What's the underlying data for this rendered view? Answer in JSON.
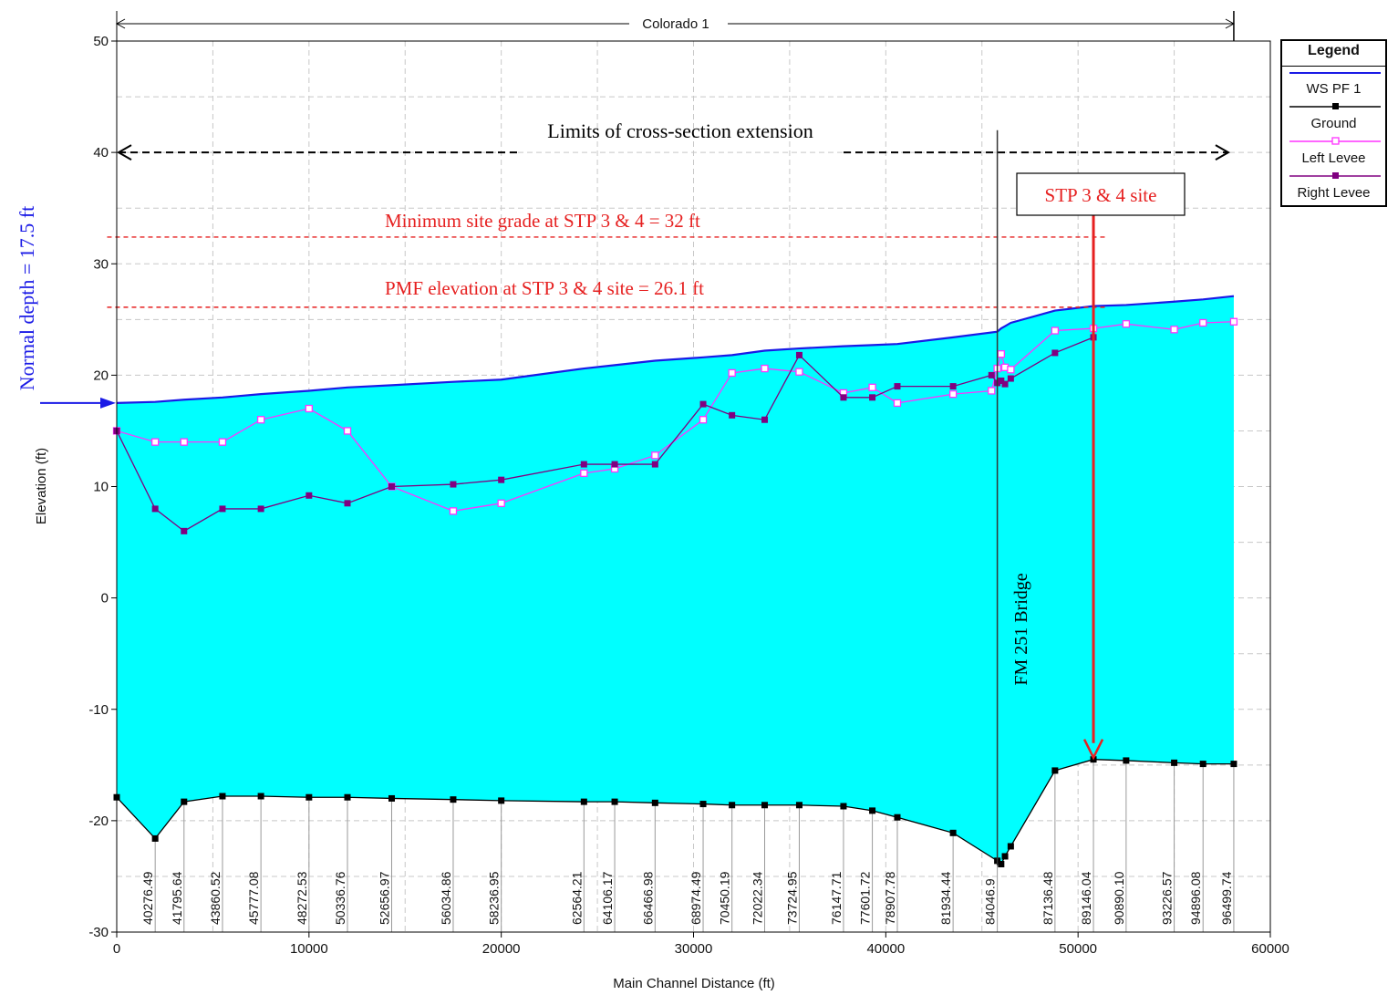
{
  "chart_data": {
    "type": "line",
    "title": "Colorado 1",
    "xlabel": "Main Channel Distance (ft)",
    "ylabel": "Elevation (ft)",
    "xlim": [
      0,
      60000
    ],
    "ylim": [
      -30,
      50
    ],
    "x_ticks": [
      0,
      10000,
      20000,
      30000,
      40000,
      50000,
      60000
    ],
    "y_ticks": [
      -30,
      -20,
      -10,
      0,
      10,
      20,
      30,
      40,
      50
    ],
    "grid": true,
    "legend_position": "right",
    "legend_title": "Legend",
    "series": [
      {
        "name": "WS  PF 1",
        "color": "#1a1ae6",
        "fill": "#00ffff",
        "x": [
          0,
          2000,
          3500,
          5500,
          7500,
          10000,
          12000,
          14300,
          17500,
          20000,
          24300,
          25900,
          28000,
          30500,
          32000,
          33700,
          35500,
          37800,
          39300,
          40600,
          43500,
          45800,
          46000,
          46200,
          46500,
          48800,
          50800,
          52500,
          55000,
          56500,
          58100
        ],
        "values": [
          17.5,
          17.6,
          17.8,
          18.0,
          18.3,
          18.6,
          18.9,
          19.1,
          19.4,
          19.6,
          20.6,
          20.9,
          21.3,
          21.6,
          21.8,
          22.2,
          22.4,
          22.6,
          22.7,
          22.8,
          23.4,
          23.9,
          24.2,
          24.4,
          24.7,
          25.8,
          26.2,
          26.3,
          26.6,
          26.8,
          27.1
        ]
      },
      {
        "name": "Ground",
        "color": "#000000",
        "x": [
          0,
          2000,
          3500,
          5500,
          7500,
          10000,
          12000,
          14300,
          17500,
          20000,
          24300,
          25900,
          28000,
          30500,
          32000,
          33700,
          35500,
          37800,
          39300,
          40600,
          43500,
          45800,
          46000,
          46200,
          46500,
          48800,
          50800,
          52500,
          55000,
          56500,
          58100
        ],
        "values": [
          -17.9,
          -21.6,
          -18.3,
          -17.8,
          -17.8,
          -17.9,
          -17.9,
          -18.0,
          -18.1,
          -18.2,
          -18.3,
          -18.3,
          -18.4,
          -18.5,
          -18.6,
          -18.6,
          -18.6,
          -18.7,
          -19.1,
          -19.7,
          -21.1,
          -23.6,
          -23.9,
          -23.2,
          -22.3,
          -15.5,
          -14.5,
          -14.6,
          -14.8,
          -14.9,
          -14.9
        ]
      },
      {
        "name": "Left Levee",
        "color": "#ff33ff",
        "x": [
          0,
          2000,
          3500,
          5500,
          7500,
          10000,
          12000,
          14300,
          17500,
          20000,
          24300,
          25900,
          28000,
          30500,
          32000,
          33700,
          35500,
          37800,
          39300,
          40600,
          43500,
          45500,
          45800,
          46000,
          46200,
          46500,
          48800,
          50800,
          52500,
          55000,
          56500,
          58100
        ],
        "values": [
          15.0,
          14.0,
          14.0,
          14.0,
          16.0,
          17.0,
          15.0,
          10.0,
          7.8,
          8.5,
          11.2,
          11.6,
          12.8,
          16.0,
          20.2,
          20.6,
          20.3,
          18.4,
          18.9,
          17.5,
          18.3,
          18.6,
          20.6,
          21.9,
          20.7,
          20.5,
          24.0,
          24.2,
          24.6,
          24.1,
          24.7,
          24.8
        ]
      },
      {
        "name": "Right Levee",
        "color": "#800080",
        "x": [
          0,
          2000,
          3500,
          5500,
          7500,
          10000,
          12000,
          14300,
          17500,
          20000,
          24300,
          25900,
          28000,
          30500,
          32000,
          33700,
          35500,
          37800,
          39300,
          40600,
          43500,
          45500,
          45800,
          46000,
          46200,
          46500,
          48800,
          50800
        ],
        "values": [
          15.0,
          8.0,
          6.0,
          8.0,
          8.0,
          9.2,
          8.5,
          10.0,
          10.2,
          10.6,
          12.0,
          12.0,
          12.0,
          17.4,
          16.4,
          16.0,
          21.8,
          18.0,
          18.0,
          19.0,
          19.0,
          20.0,
          19.3,
          19.5,
          19.2,
          19.7,
          22.0,
          23.4
        ]
      }
    ],
    "station_labels": [
      {
        "x": 2000,
        "label": "40276.49"
      },
      {
        "x": 3500,
        "label": "41795.64"
      },
      {
        "x": 5500,
        "label": "43860.52"
      },
      {
        "x": 7500,
        "label": "45777.08"
      },
      {
        "x": 10000,
        "label": "48272.53"
      },
      {
        "x": 12000,
        "label": "50336.76"
      },
      {
        "x": 14300,
        "label": "52656.97"
      },
      {
        "x": 17500,
        "label": "56034.86"
      },
      {
        "x": 20000,
        "label": "58236.95"
      },
      {
        "x": 24300,
        "label": "62564.21"
      },
      {
        "x": 25900,
        "label": "64106.17"
      },
      {
        "x": 28000,
        "label": "66466.98"
      },
      {
        "x": 30500,
        "label": "68974.49"
      },
      {
        "x": 32000,
        "label": "70450.19"
      },
      {
        "x": 33700,
        "label": "72022.34"
      },
      {
        "x": 35500,
        "label": "73724.95"
      },
      {
        "x": 37800,
        "label": "76147.71"
      },
      {
        "x": 39300,
        "label": "77601.72"
      },
      {
        "x": 40600,
        "label": "78907.78"
      },
      {
        "x": 43500,
        "label": "81934.44"
      },
      {
        "x": 45800,
        "label": "84046.9"
      },
      {
        "x": 48800,
        "label": "87136.48"
      },
      {
        "x": 50800,
        "label": "89146.04"
      },
      {
        "x": 52500,
        "label": "90890.10"
      },
      {
        "x": 55000,
        "label": "93226.57"
      },
      {
        "x": 56500,
        "label": "94896.08"
      },
      {
        "x": 58100,
        "label": "96499.74"
      }
    ],
    "annotations": {
      "reach_x": [
        0,
        58100
      ],
      "limits_text": "Limits of cross-section extension",
      "limits_y": 40,
      "limits_x": [
        0,
        58100
      ],
      "min_grade_text": "Minimum site grade at STP 3 & 4 = 32 ft",
      "min_grade_y": 32.4,
      "min_grade_x": [
        -500,
        51500
      ],
      "pmf_text": "PMF elevation at STP 3 & 4 site = 26.1 ft",
      "pmf_y": 26.1,
      "pmf_x": [
        -500,
        51500
      ],
      "normal_depth_text": "Normal depth = 17.5 ft",
      "normal_depth_y": 17.5,
      "bridge_text": "FM 251 Bridge",
      "bridge_x": 45800,
      "bridge_top_y": 42,
      "site_text": "STP 3 & 4 site",
      "site_x": 50800,
      "site_arrow_to_y": -14.5
    }
  }
}
